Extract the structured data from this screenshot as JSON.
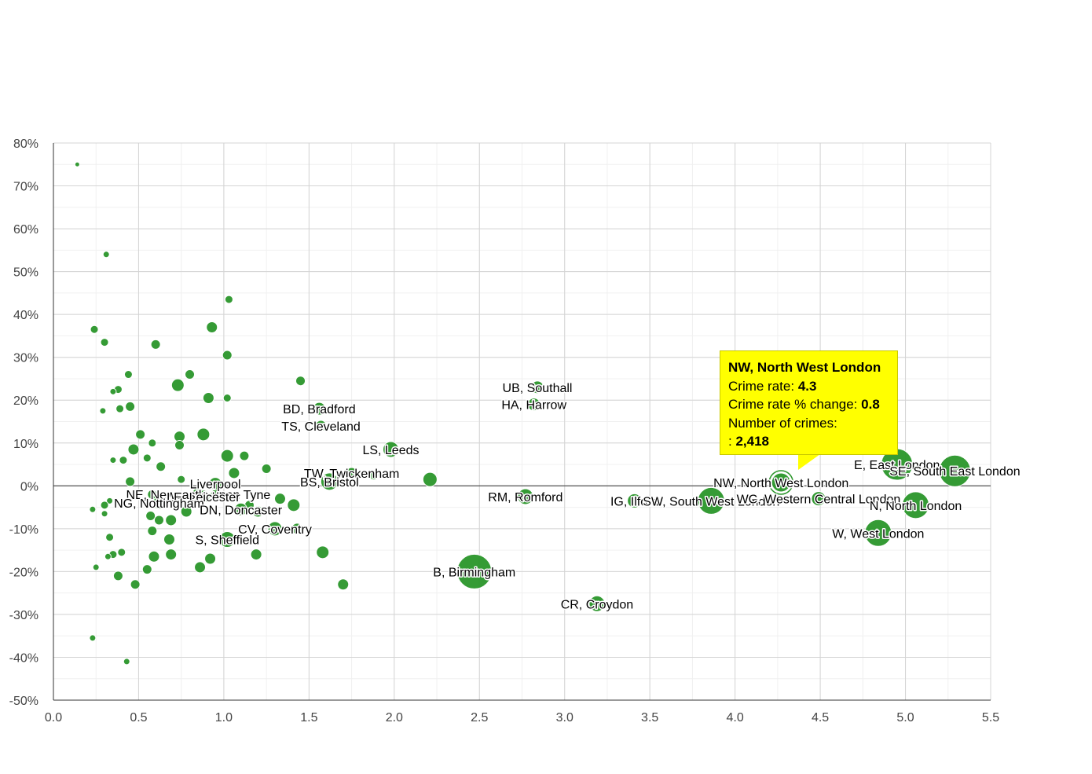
{
  "chart_data": {
    "type": "scatter",
    "bubble": true,
    "title": "",
    "xlabel": "",
    "ylabel": "",
    "xlim": [
      0,
      5.5
    ],
    "ylim": [
      -50,
      80
    ],
    "x_ticks": [
      "0.0",
      "0.5",
      "1.0",
      "1.5",
      "2.0",
      "2.5",
      "3.0",
      "3.5",
      "4.0",
      "4.5",
      "5.0",
      "5.5"
    ],
    "y_ticks": [
      "80%",
      "70%",
      "60%",
      "50%",
      "40%",
      "30%",
      "20%",
      "10%",
      "0%",
      "-10%",
      "-20%",
      "-30%",
      "-40%",
      "-50%"
    ],
    "grid": true,
    "color": "#2b962b",
    "labeled_points": [
      {
        "label": "UB, Southall",
        "x": 2.84,
        "y": 23,
        "size": 8
      },
      {
        "label": "HA, Harrow",
        "x": 2.82,
        "y": 19,
        "size": 8
      },
      {
        "label": "BD, Bradford",
        "x": 1.56,
        "y": 18,
        "size": 8
      },
      {
        "label": "TS, Cleveland",
        "x": 1.57,
        "y": 14,
        "size": 7
      },
      {
        "label": "LS, Leeds",
        "x": 1.98,
        "y": 8.5,
        "size": 10
      },
      {
        "label": "TW, Twickenham",
        "x": 1.75,
        "y": 3,
        "size": 7
      },
      {
        "label": "BS, Bristol",
        "x": 1.62,
        "y": 1,
        "size": 11
      },
      {
        "label": "Liverpool",
        "x": 0.95,
        "y": 0.5,
        "size": 8
      },
      {
        "label": "NE, Newcastle upon Tyne",
        "x": 0.85,
        "y": -2,
        "size": 8
      },
      {
        "label": "LE, Leicester",
        "x": 0.88,
        "y": -2.5,
        "size": 8
      },
      {
        "label": "NG, Nottingham",
        "x": 0.62,
        "y": -4,
        "size": 8
      },
      {
        "label": "DN, Doncaster",
        "x": 1.1,
        "y": -5.5,
        "size": 8
      },
      {
        "label": "CV, Coventry",
        "x": 1.3,
        "y": -10,
        "size": 9
      },
      {
        "label": "S, Sheffield",
        "x": 1.02,
        "y": -12.5,
        "size": 10
      },
      {
        "label": "B, Birmingham",
        "x": 2.47,
        "y": -20,
        "size": 22
      },
      {
        "label": "RM, Romford",
        "x": 2.77,
        "y": -2.5,
        "size": 10
      },
      {
        "label": "CR, Croydon",
        "x": 3.19,
        "y": -27.5,
        "size": 10
      },
      {
        "label": "IG, Ilford",
        "x": 3.41,
        "y": -3.5,
        "size": 9
      },
      {
        "label": "SW, South West London",
        "x": 3.86,
        "y": -3.5,
        "size": 17
      },
      {
        "label": "NW, North West London",
        "x": 4.27,
        "y": 0.8,
        "size": 12
      },
      {
        "label": "WC, Western Central London",
        "x": 4.49,
        "y": -3,
        "size": 9
      },
      {
        "label": "E, East London",
        "x": 4.95,
        "y": 5,
        "size": 20
      },
      {
        "label": "SE, South East London",
        "x": 5.29,
        "y": 3.5,
        "size": 20
      },
      {
        "label": "N, North London",
        "x": 5.06,
        "y": -4.5,
        "size": 17
      },
      {
        "label": "W, West London",
        "x": 4.84,
        "y": -11,
        "size": 17
      }
    ],
    "other_points": [
      [
        0.14,
        75,
        3
      ],
      [
        0.31,
        54,
        4
      ],
      [
        1.03,
        43.5,
        5
      ],
      [
        0.24,
        36.5,
        5
      ],
      [
        0.93,
        37,
        7
      ],
      [
        0.3,
        33.5,
        5
      ],
      [
        0.6,
        33,
        6
      ],
      [
        1.02,
        30.5,
        6
      ],
      [
        0.44,
        26,
        5
      ],
      [
        0.8,
        26,
        6
      ],
      [
        1.45,
        24.5,
        6
      ],
      [
        0.73,
        23.5,
        8
      ],
      [
        0.38,
        22.5,
        5
      ],
      [
        0.35,
        22,
        4
      ],
      [
        0.91,
        20.5,
        7
      ],
      [
        1.02,
        20.5,
        5
      ],
      [
        0.45,
        18.5,
        6
      ],
      [
        0.39,
        18,
        5
      ],
      [
        0.29,
        17.5,
        4
      ],
      [
        0.88,
        12,
        8
      ],
      [
        0.74,
        11.5,
        7
      ],
      [
        0.51,
        12,
        6
      ],
      [
        0.58,
        10,
        5
      ],
      [
        0.74,
        9.5,
        6
      ],
      [
        0.47,
        8.5,
        7
      ],
      [
        1.02,
        7,
        8
      ],
      [
        1.12,
        7,
        6
      ],
      [
        0.55,
        6.5,
        5
      ],
      [
        0.35,
        6,
        4
      ],
      [
        0.41,
        6,
        5
      ],
      [
        0.63,
        4.5,
        6
      ],
      [
        1.25,
        4,
        6
      ],
      [
        1.06,
        3,
        7
      ],
      [
        0.45,
        1,
        6
      ],
      [
        0.75,
        1.5,
        5
      ],
      [
        0.58,
        -2,
        6
      ],
      [
        0.82,
        -3,
        6
      ],
      [
        0.95,
        -2,
        6
      ],
      [
        1.15,
        -4.5,
        6
      ],
      [
        1.33,
        -3,
        7
      ],
      [
        1.41,
        -4.5,
        8
      ],
      [
        0.33,
        -3.5,
        4
      ],
      [
        0.3,
        -4.5,
        5
      ],
      [
        0.23,
        -5.5,
        4
      ],
      [
        0.3,
        -6.5,
        4
      ],
      [
        0.57,
        -7,
        6
      ],
      [
        0.62,
        -8,
        6
      ],
      [
        0.69,
        -8,
        7
      ],
      [
        0.78,
        -6,
        7
      ],
      [
        1.2,
        -6,
        7
      ],
      [
        1.43,
        -10,
        7
      ],
      [
        0.58,
        -10.5,
        6
      ],
      [
        0.68,
        -12.5,
        7
      ],
      [
        0.33,
        -12,
        5
      ],
      [
        0.69,
        -16,
        7
      ],
      [
        0.59,
        -16.5,
        7
      ],
      [
        0.92,
        -17,
        7
      ],
      [
        1.19,
        -16,
        7
      ],
      [
        1.58,
        -15.5,
        8
      ],
      [
        0.35,
        -16,
        5
      ],
      [
        0.4,
        -15.5,
        5
      ],
      [
        0.32,
        -16.5,
        4
      ],
      [
        0.25,
        -19,
        4
      ],
      [
        0.55,
        -19.5,
        6
      ],
      [
        0.86,
        -19,
        7
      ],
      [
        0.38,
        -21,
        6
      ],
      [
        0.48,
        -23,
        6
      ],
      [
        1.7,
        -23,
        7
      ],
      [
        0.23,
        -35.5,
        4
      ],
      [
        0.43,
        -41,
        4
      ],
      [
        1.88,
        2.5,
        6
      ],
      [
        2.21,
        1.5,
        9
      ]
    ],
    "tooltip": {
      "title": "NW, North West London",
      "rate_label": "Crime rate:",
      "rate_value": "4.3",
      "change_label": "Crime rate % change:",
      "change_value": "0.8",
      "count_label": "Number of crimes:",
      "count_prefix": ":",
      "count_value": "2,418"
    }
  }
}
